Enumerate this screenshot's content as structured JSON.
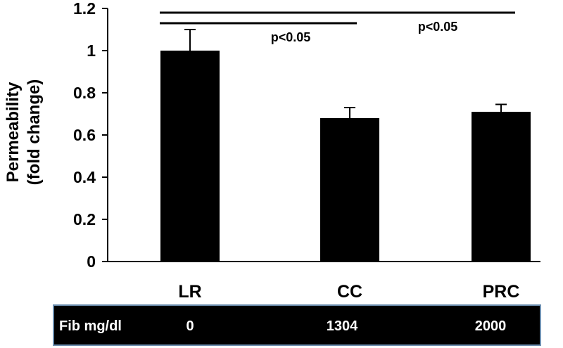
{
  "chart_data": {
    "type": "bar",
    "categories": [
      "LR",
      "CC",
      "PRC"
    ],
    "values": [
      1.0,
      0.68,
      0.71
    ],
    "errors": [
      0.1,
      0.05,
      0.035
    ],
    "ylabel_line1": "Permeability",
    "ylabel_line2": "(fold change)",
    "ylim": [
      0,
      1.2
    ],
    "yticks": [
      0,
      0.2,
      0.4,
      0.6,
      0.8,
      1,
      1.2
    ],
    "ytick_labels": [
      "0",
      "0.2",
      "0.4",
      "0.6",
      "0.8",
      "1",
      "1.2"
    ],
    "bar_color": "#000000",
    "significance": [
      {
        "from": "LR",
        "to": "PRC",
        "label": "p<0.05"
      },
      {
        "from": "LR",
        "to": "CC",
        "label": "p<0.05"
      }
    ],
    "table": {
      "header": "Fib mg/dl",
      "values": [
        "0",
        "1304",
        "2000"
      ],
      "background": "#000000",
      "text_color": "#ffffff"
    }
  }
}
